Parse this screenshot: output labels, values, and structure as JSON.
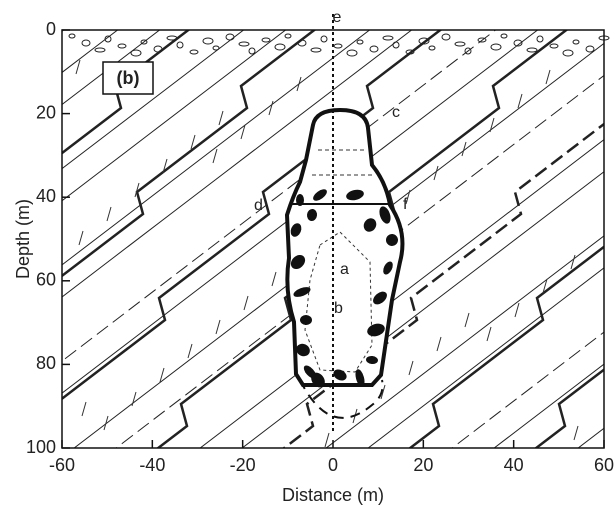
{
  "figure": {
    "panel_label": "(b)",
    "x_axis": {
      "label": "Distance (m)",
      "lim": [
        -60,
        60
      ],
      "ticks": [
        -60,
        -40,
        -20,
        0,
        20,
        40,
        60
      ]
    },
    "y_axis": {
      "label": "Depth (m)",
      "lim": [
        0,
        100
      ],
      "ticks": [
        0,
        20,
        40,
        60,
        80,
        100
      ]
    },
    "annotations": [
      "a",
      "b",
      "c",
      "d",
      "e",
      "f"
    ]
  }
}
